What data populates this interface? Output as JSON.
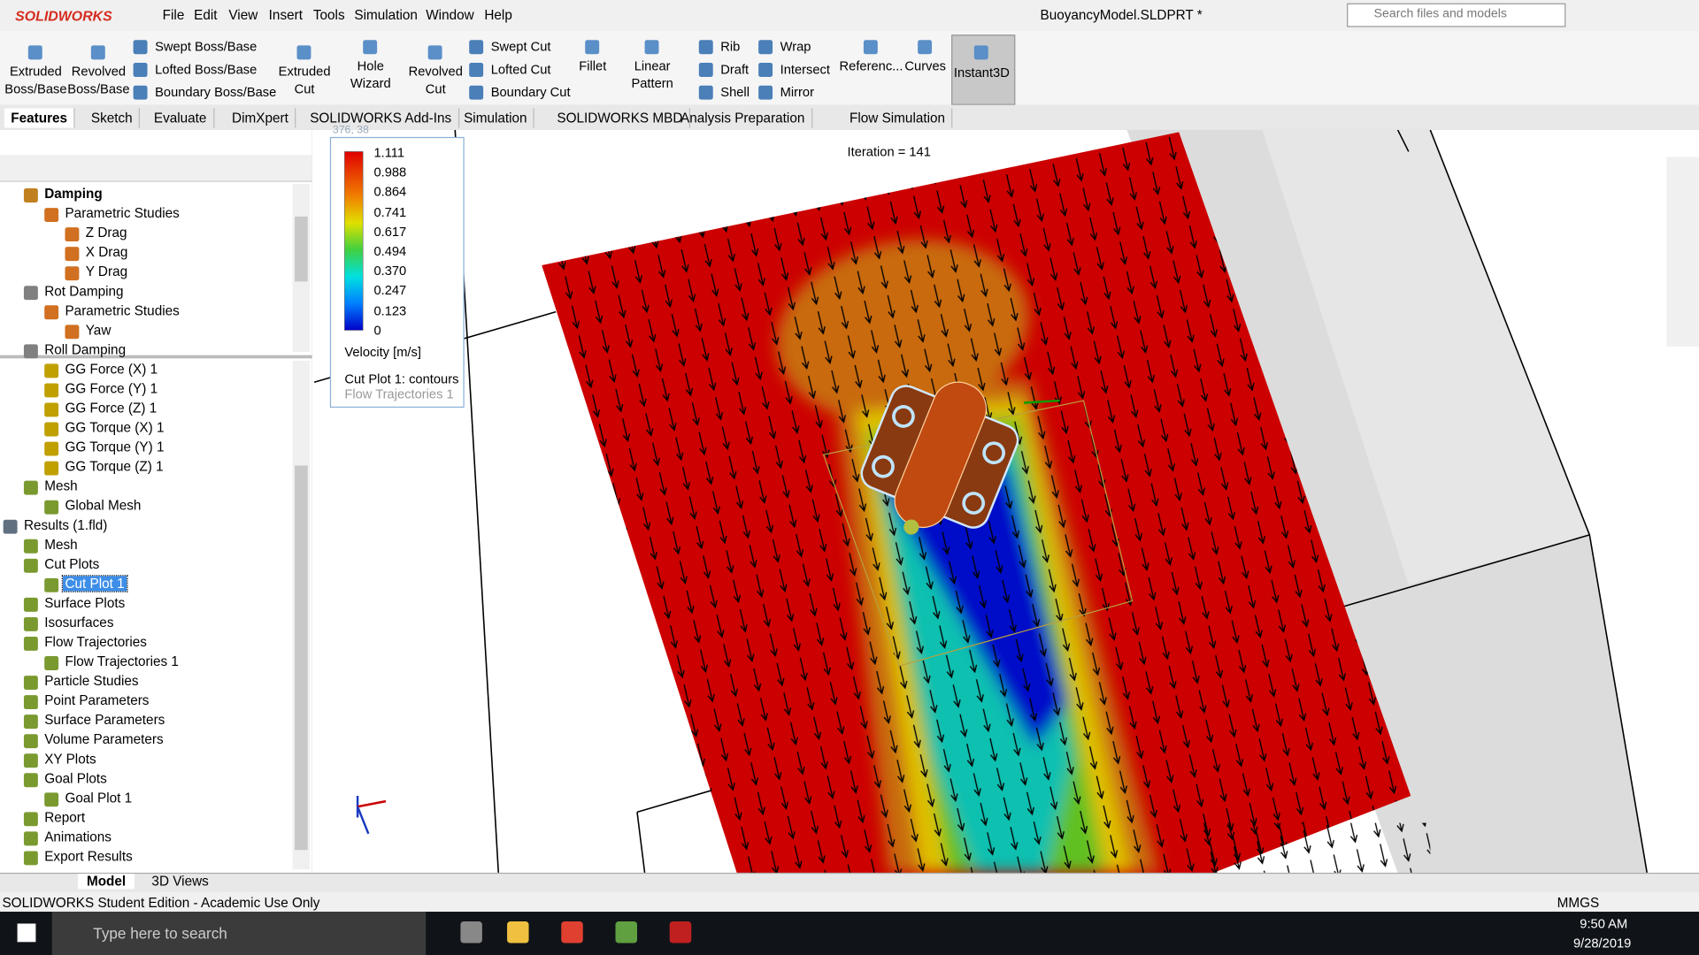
{
  "app": {
    "logo": "SOLIDWORKS",
    "menu": [
      "File",
      "Edit",
      "View",
      "Insert",
      "Tools",
      "Simulation",
      "Window",
      "Help"
    ],
    "title": "BuoyancyModel.SLDPRT *",
    "search": "Search files and models"
  },
  "toolbar": [
    "Extruded Boss/Base",
    "Revolved Boss/Base",
    "Swept Boss/Base",
    "Lofted Boss/Base",
    "Boundary Boss/Base",
    "Extruded Cut",
    "Hole Wizard",
    "Revolved Cut",
    "Swept Cut",
    "Lofted Cut",
    "Boundary Cut",
    "Fillet",
    "Linear Pattern",
    "Rib",
    "Draft",
    "Shell",
    "Wrap",
    "Intersect",
    "Mirror",
    "Referenc...",
    "Curves",
    "Instant3D"
  ],
  "tabs": [
    "Features",
    "Sketch",
    "Evaluate",
    "DimXpert",
    "SOLIDWORKS Add-Ins",
    "Simulation",
    "SOLIDWORKS MBD",
    "Analysis Preparation",
    "Flow Simulation"
  ],
  "tree_top": [
    "Damping",
    "Parametric Studies",
    "Z Drag",
    "X Drag",
    "Y Drag",
    "Rot Damping",
    "Parametric Studies",
    "Yaw",
    "Roll Damping"
  ],
  "tree_bottom": [
    "GG Force (X) 1",
    "GG Force (Y) 1",
    "GG Force (Z) 1",
    "GG Torque (X) 1",
    "GG Torque (Y) 1",
    "GG Torque (Z) 1",
    "Mesh",
    "Global Mesh",
    "Results (1.fld)",
    "Mesh",
    "Cut Plots",
    "Cut Plot 1",
    "Surface Plots",
    "Isosurfaces",
    "Flow Trajectories",
    "Flow Trajectories 1",
    "Particle Studies",
    "Point Parameters",
    "Surface Parameters",
    "Volume Parameters",
    "XY Plots",
    "Goal Plots",
    "Goal Plot 1",
    "Report",
    "Animations",
    "Export Results"
  ],
  "viewport": {
    "coords": "376, 38",
    "iteration": "Iteration = 141",
    "legend": {
      "values": [
        "1.111",
        "0.988",
        "0.864",
        "0.741",
        "0.617",
        "0.494",
        "0.370",
        "0.247",
        "0.123",
        "0"
      ],
      "unit": "Velocity [m/s]",
      "plot": "Cut Plot 1: contours",
      "trajectories": "Flow Trajectories 1"
    }
  },
  "bottom_tabs": [
    "Model",
    "3D Views"
  ],
  "status": {
    "text": "SOLIDWORKS Student Edition - Academic Use Only",
    "units": "MMGS"
  },
  "taskbar": {
    "search": "Type here to search",
    "time": "9:50 AM",
    "date": "9/28/2019"
  }
}
